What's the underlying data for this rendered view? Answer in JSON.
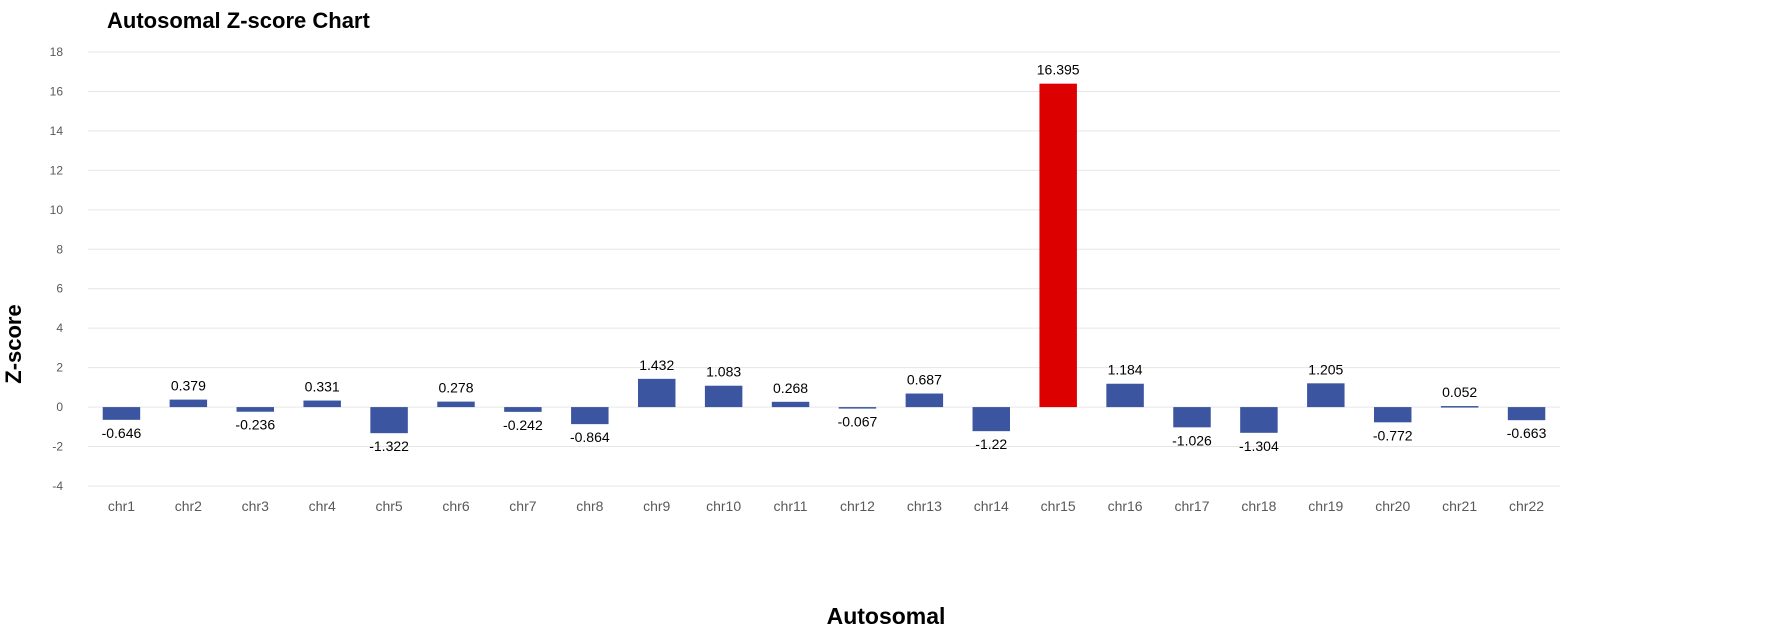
{
  "chart_data": {
    "type": "bar",
    "title": "Autosomal Z-score Chart",
    "xlabel": "Autosomal",
    "ylabel": "Z-score",
    "ylim": [
      -4,
      18
    ],
    "yticks": [
      "-4",
      "-2",
      "0",
      "2",
      "4",
      "6",
      "8",
      "10",
      "12",
      "14",
      "16",
      "18"
    ],
    "ytick_values": [
      -4,
      -2,
      0,
      2,
      4,
      6,
      8,
      10,
      12,
      14,
      16,
      18
    ],
    "grid": true,
    "legend": "none",
    "categories": [
      "chr1",
      "chr2",
      "chr3",
      "chr4",
      "chr5",
      "chr6",
      "chr7",
      "chr8",
      "chr9",
      "chr10",
      "chr11",
      "chr12",
      "chr13",
      "chr14",
      "chr15",
      "chr16",
      "chr17",
      "chr18",
      "chr19",
      "chr20",
      "chr21",
      "chr22"
    ],
    "values": [
      -0.646,
      0.379,
      -0.236,
      0.331,
      -1.322,
      0.278,
      -0.242,
      -0.864,
      1.432,
      1.083,
      0.268,
      -0.067,
      0.687,
      -1.22,
      16.395,
      1.184,
      -1.026,
      -1.304,
      1.205,
      -0.772,
      0.052,
      -0.663
    ],
    "data_labels": [
      "-0.646",
      "0.379",
      "-0.236",
      "0.331",
      "-1.322",
      "0.278",
      "-0.242",
      "-0.864",
      "1.432",
      "1.083",
      "0.268",
      "-0.067",
      "0.687",
      "-1.22",
      "16.395",
      "1.184",
      "-1.026",
      "-1.304",
      "1.205",
      "-0.772",
      "0.052",
      "-0.663"
    ],
    "highlight_category": "chr15",
    "colors": {
      "bar": "#3b55a0",
      "highlight": "#dd0000",
      "grid": "#e6e6e6",
      "tick_text": "#595959",
      "label_text": "#000000"
    }
  }
}
